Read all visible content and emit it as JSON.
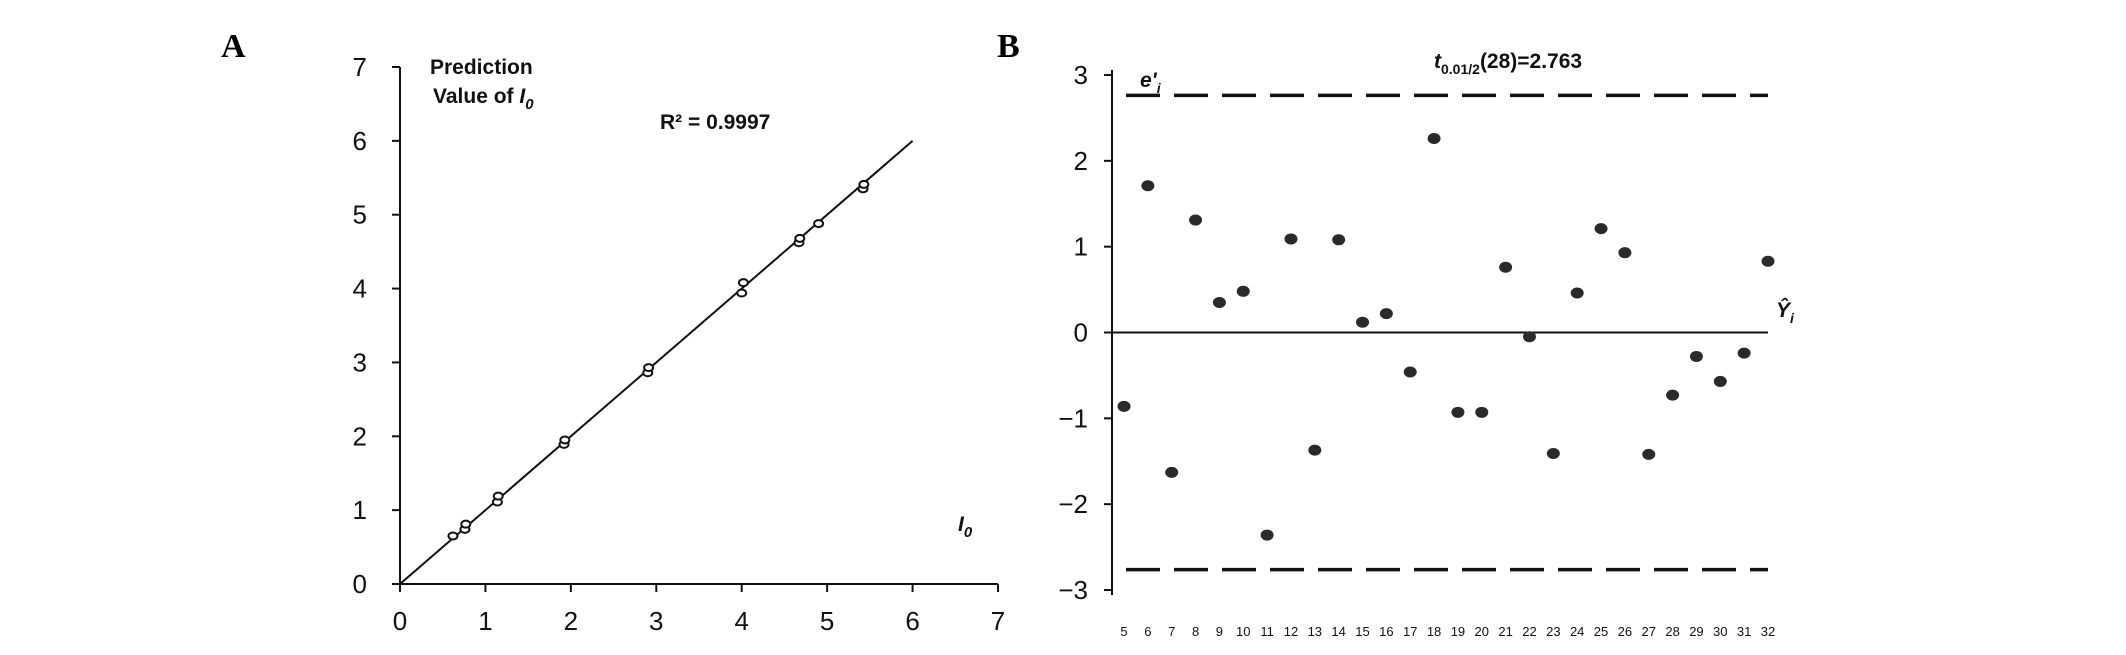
{
  "chart_data": [
    {
      "panel": "A",
      "type": "scatter",
      "ylabel_line1": "Prediction",
      "ylabel_line2_prefix": "Value of ",
      "xlabel": "I",
      "label_subscript": "0",
      "annotation": "R² = 0.9997",
      "xlim": [
        0,
        7
      ],
      "ylim": [
        0,
        7
      ],
      "xticks": [
        0,
        1,
        2,
        3,
        4,
        5,
        6,
        7
      ],
      "yticks": [
        0,
        1,
        2,
        3,
        4,
        5,
        6,
        7
      ],
      "grid": false,
      "fit_line": {
        "x": [
          0,
          6
        ],
        "y": [
          0,
          6
        ]
      },
      "points": [
        {
          "x": 0.62,
          "y": 0.65
        },
        {
          "x": 0.76,
          "y": 0.74
        },
        {
          "x": 0.77,
          "y": 0.81
        },
        {
          "x": 1.14,
          "y": 1.11
        },
        {
          "x": 1.15,
          "y": 1.19
        },
        {
          "x": 1.92,
          "y": 1.89
        },
        {
          "x": 1.93,
          "y": 1.95
        },
        {
          "x": 2.9,
          "y": 2.86
        },
        {
          "x": 2.91,
          "y": 2.93
        },
        {
          "x": 4.0,
          "y": 3.94
        },
        {
          "x": 4.02,
          "y": 4.08
        },
        {
          "x": 4.67,
          "y": 4.62
        },
        {
          "x": 4.68,
          "y": 4.68
        },
        {
          "x": 4.9,
          "y": 4.88
        },
        {
          "x": 5.42,
          "y": 5.35
        },
        {
          "x": 5.43,
          "y": 5.41
        }
      ]
    },
    {
      "panel": "B",
      "type": "scatter",
      "ylabel": "e'i",
      "xlabel": "Ŷi",
      "threshold_label": "t0.01/2(28)=2.763",
      "threshold": 2.763,
      "ylim": [
        -3,
        3
      ],
      "yticks": [
        3,
        2,
        1,
        0,
        -1,
        -2,
        -3
      ],
      "xticks": [
        5,
        6,
        7,
        8,
        9,
        10,
        11,
        12,
        13,
        14,
        15,
        16,
        17,
        18,
        19,
        20,
        21,
        22,
        23,
        24,
        25,
        26,
        27,
        28,
        29,
        30,
        31,
        32
      ],
      "grid": false,
      "points": [
        {
          "x": 5,
          "y": -0.86
        },
        {
          "x": 6,
          "y": 1.71
        },
        {
          "x": 7,
          "y": -1.63
        },
        {
          "x": 8,
          "y": 1.31
        },
        {
          "x": 9,
          "y": 0.35
        },
        {
          "x": 10,
          "y": 0.48
        },
        {
          "x": 11,
          "y": -2.36
        },
        {
          "x": 12,
          "y": 1.09
        },
        {
          "x": 13,
          "y": -1.37
        },
        {
          "x": 14,
          "y": 1.08
        },
        {
          "x": 15,
          "y": 0.12
        },
        {
          "x": 16,
          "y": 0.22
        },
        {
          "x": 17,
          "y": -0.46
        },
        {
          "x": 18,
          "y": 2.26
        },
        {
          "x": 19,
          "y": -0.93
        },
        {
          "x": 20,
          "y": -0.93
        },
        {
          "x": 21,
          "y": 0.76
        },
        {
          "x": 22,
          "y": -0.05
        },
        {
          "x": 23,
          "y": -1.41
        },
        {
          "x": 24,
          "y": 0.46
        },
        {
          "x": 25,
          "y": 1.21
        },
        {
          "x": 26,
          "y": 0.93
        },
        {
          "x": 27,
          "y": -1.42
        },
        {
          "x": 28,
          "y": -0.73
        },
        {
          "x": 29,
          "y": -0.28
        },
        {
          "x": 30,
          "y": -0.57
        },
        {
          "x": 31,
          "y": -0.24
        },
        {
          "x": 32,
          "y": 0.83
        }
      ]
    }
  ]
}
